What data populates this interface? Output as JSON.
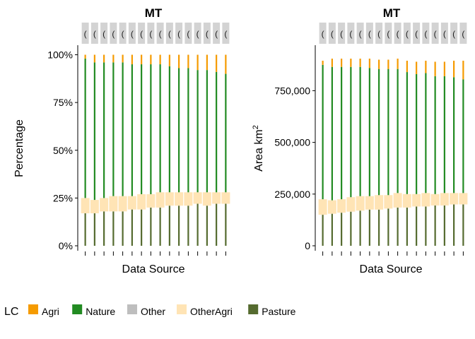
{
  "legend": {
    "title": "LC",
    "items": [
      {
        "name": "Agri",
        "color": "#F59B00"
      },
      {
        "name": "Nature",
        "color": "#228B22"
      },
      {
        "name": "Other",
        "color": "#BEBEBE"
      },
      {
        "name": "OtherAgri",
        "color": "#FFE4B5"
      },
      {
        "name": "Pasture",
        "color": "#556B2F"
      }
    ]
  },
  "chart_data": [
    {
      "type": "bar",
      "stacked": true,
      "title": "MT",
      "xlabel": "Data Source",
      "ylabel": "Percentage",
      "ylim": [
        0,
        1.05
      ],
      "yticks": [
        0,
        0.25,
        0.5,
        0.75,
        1.0
      ],
      "ytick_labels": [
        "0%",
        "25%",
        "50%",
        "75%",
        "100%"
      ],
      "grid": false,
      "legend_position": "bottom",
      "n_sources": 16,
      "stack_order": [
        "Pasture",
        "OtherAgri",
        "Nature",
        "Other",
        "Agri"
      ],
      "series": [
        {
          "name": "Pasture",
          "values": [
            0.17,
            0.17,
            0.18,
            0.18,
            0.18,
            0.19,
            0.19,
            0.2,
            0.2,
            0.21,
            0.21,
            0.21,
            0.22,
            0.21,
            0.22,
            0.22
          ]
        },
        {
          "name": "OtherAgri",
          "values": [
            0.08,
            0.07,
            0.07,
            0.08,
            0.08,
            0.07,
            0.08,
            0.07,
            0.08,
            0.07,
            0.07,
            0.07,
            0.06,
            0.07,
            0.06,
            0.06
          ]
        },
        {
          "name": "Nature",
          "values": [
            0.73,
            0.72,
            0.71,
            0.7,
            0.7,
            0.69,
            0.68,
            0.68,
            0.67,
            0.66,
            0.65,
            0.65,
            0.64,
            0.64,
            0.63,
            0.62
          ]
        },
        {
          "name": "Other",
          "values": [
            0.0,
            0.0,
            0.0,
            0.0,
            0.0,
            0.0,
            0.0,
            0.0,
            0.0,
            0.0,
            0.0,
            0.0,
            0.0,
            0.0,
            0.0,
            0.0
          ]
        },
        {
          "name": "Agri",
          "values": [
            0.02,
            0.04,
            0.04,
            0.04,
            0.04,
            0.05,
            0.05,
            0.05,
            0.05,
            0.06,
            0.07,
            0.07,
            0.08,
            0.08,
            0.09,
            0.1
          ]
        }
      ]
    },
    {
      "type": "bar",
      "stacked": true,
      "title": "MT",
      "xlabel": "Data Source",
      "ylabel": "Area km",
      "ylabel_superscript": "2",
      "ylim": [
        0,
        970000
      ],
      "yticks": [
        0,
        250000,
        500000,
        750000
      ],
      "ytick_labels": [
        "0",
        "250,000",
        "500,000",
        "750,000"
      ],
      "grid": false,
      "legend_position": "bottom",
      "n_sources": 16,
      "stack_order": [
        "Pasture",
        "OtherAgri",
        "Nature",
        "Other",
        "Agri"
      ],
      "series": [
        {
          "name": "Pasture",
          "values": [
            150000,
            155000,
            160000,
            165000,
            170000,
            175000,
            175000,
            180000,
            185000,
            185000,
            190000,
            190000,
            195000,
            195000,
            200000,
            200000
          ]
        },
        {
          "name": "OtherAgri",
          "values": [
            75000,
            65000,
            65000,
            70000,
            70000,
            65000,
            70000,
            65000,
            70000,
            65000,
            60000,
            65000,
            55000,
            60000,
            55000,
            55000
          ]
        },
        {
          "name": "Nature",
          "values": [
            650000,
            645000,
            640000,
            630000,
            625000,
            620000,
            610000,
            610000,
            600000,
            590000,
            580000,
            580000,
            570000,
            565000,
            560000,
            550000
          ]
        },
        {
          "name": "Other",
          "values": [
            0,
            0,
            0,
            0,
            0,
            0,
            0,
            0,
            0,
            0,
            0,
            0,
            0,
            0,
            0,
            0
          ]
        },
        {
          "name": "Agri",
          "values": [
            20000,
            40000,
            40000,
            40000,
            40000,
            45000,
            45000,
            45000,
            50000,
            55000,
            60000,
            60000,
            70000,
            70000,
            80000,
            90000
          ]
        }
      ]
    }
  ]
}
